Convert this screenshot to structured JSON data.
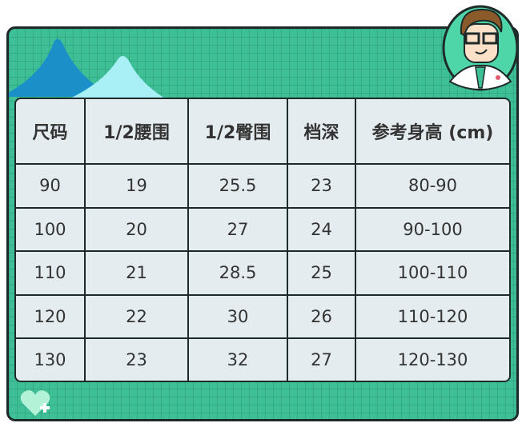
{
  "table": {
    "headers": [
      "尺码",
      "1/2腰围",
      "1/2臀围",
      "档深",
      "参考身高 (cm)"
    ],
    "rows": [
      [
        "90",
        "19",
        "25.5",
        "23",
        "80-90"
      ],
      [
        "100",
        "20",
        "27",
        "24",
        "90-100"
      ],
      [
        "110",
        "21",
        "28.5",
        "25",
        "100-110"
      ],
      [
        "120",
        "22",
        "30",
        "26",
        "110-120"
      ],
      [
        "130",
        "23",
        "32",
        "27",
        "120-130"
      ]
    ]
  },
  "colors": {
    "background": "#3fbf96",
    "table": "#e4ecef",
    "peak_dark": "#1a8fc8",
    "peak_light": "#a8f0f6",
    "border": "#1e2a2a"
  },
  "icons": [
    "doctor-avatar-icon",
    "heart-plus-icon"
  ]
}
